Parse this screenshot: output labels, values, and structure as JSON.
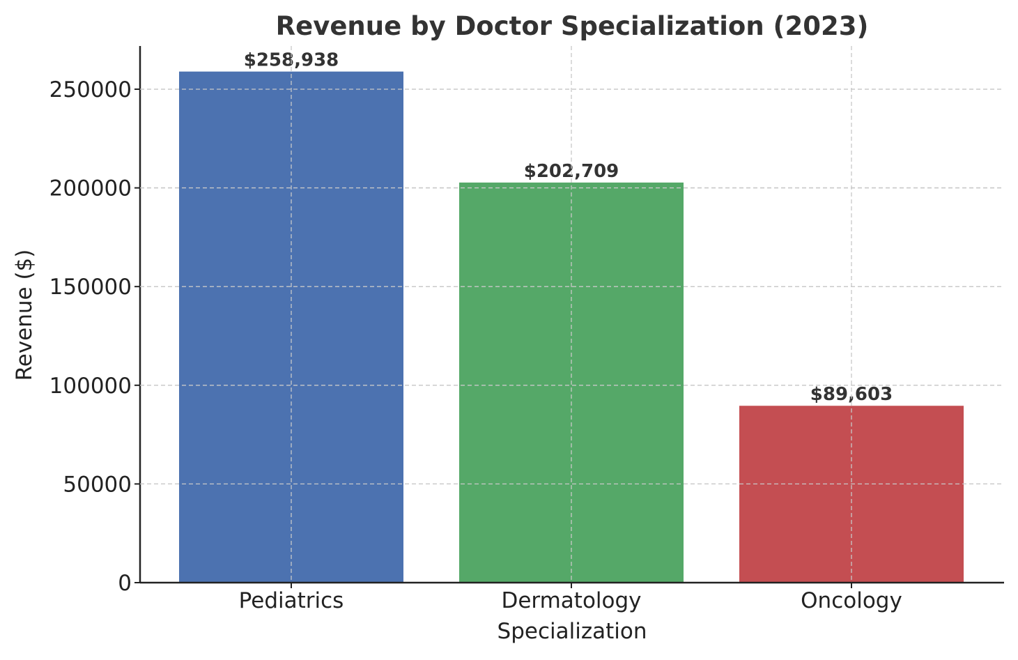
{
  "chart_data": {
    "type": "bar",
    "title": "Revenue by Doctor Specialization (2023)",
    "xlabel": "Specialization",
    "ylabel": "Revenue ($)",
    "categories": [
      "Pediatrics",
      "Dermatology",
      "Oncology"
    ],
    "values": [
      258938,
      202709,
      89603
    ],
    "value_labels": [
      "$258,938",
      "$202,709",
      "$89,603"
    ],
    "colors": [
      "#4c72b0",
      "#55a868",
      "#c44e52"
    ],
    "ylim": [
      0,
      271885
    ],
    "yticks": [
      0,
      50000,
      100000,
      150000,
      200000,
      250000
    ],
    "ytick_labels": [
      "0",
      "50000",
      "100000",
      "150000",
      "200000",
      "250000"
    ],
    "grid": true,
    "legend": "none"
  }
}
